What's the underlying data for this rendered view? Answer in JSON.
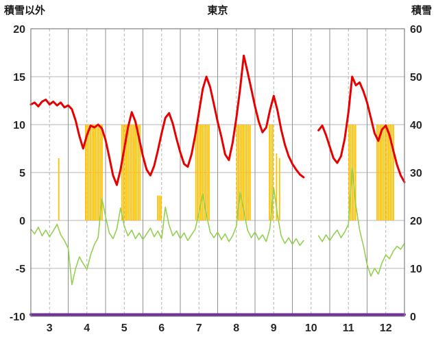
{
  "header": {
    "left_axis_title": "積雪以外",
    "title": "東京",
    "right_axis_title": "積雪"
  },
  "chart_data": {
    "type": "line",
    "title": "東京",
    "legend": "none",
    "grid": "solid month boundaries, dashed mid-month verticals, solid horizontals",
    "left_axis": {
      "label": "積雪以外",
      "min": -10,
      "max": 20,
      "tick_step": 5,
      "ticks": [
        -10,
        -5,
        0,
        5,
        10,
        15,
        20
      ]
    },
    "right_axis": {
      "label": "積雪",
      "min": 0,
      "max": 60,
      "tick_step": 10,
      "ticks": [
        0,
        10,
        20,
        30,
        40,
        50,
        60
      ]
    },
    "x_axis": {
      "labels": [
        "3",
        "4",
        "5",
        "6",
        "7",
        "8",
        "9",
        "10",
        "11",
        "12"
      ],
      "range": [
        3,
        13
      ],
      "unit": "month"
    },
    "series": [
      {
        "name": "orange-bars",
        "type": "bar",
        "axis": "left",
        "color": "#ffc000",
        "segments": [
          {
            "from": 3.73,
            "to": 3.8,
            "value": 6.5
          },
          {
            "from": 4.45,
            "to": 4.96,
            "value": 10
          },
          {
            "from": 5.42,
            "to": 5.94,
            "value": 10
          },
          {
            "from": 6.38,
            "to": 6.54,
            "value": 2.6
          },
          {
            "from": 7.4,
            "to": 7.81,
            "value": 10
          },
          {
            "from": 8.5,
            "to": 8.89,
            "value": 10
          },
          {
            "from": 9.37,
            "to": 9.53,
            "value": 10
          },
          {
            "from": 9.56,
            "to": 9.62,
            "value": 7.0
          },
          {
            "from": 9.64,
            "to": 9.7,
            "value": 6.5
          },
          {
            "from": 11.5,
            "to": 11.73,
            "value": 10
          },
          {
            "from": 12.25,
            "to": 12.74,
            "value": 10
          }
        ]
      },
      {
        "name": "snow-depth",
        "type": "line",
        "axis": "right",
        "color": "#7030a0",
        "width": 4,
        "x_start": 3.0,
        "x_step": 10.0,
        "y": [
          0,
          0
        ]
      },
      {
        "name": "green-line",
        "type": "line",
        "axis": "left",
        "color": "#92d050",
        "width": 1.6,
        "x_start": 3.0,
        "x_step": 0.1,
        "y": [
          -0.9,
          -1.4,
          -0.7,
          -1.6,
          -1.0,
          -1.7,
          -1.1,
          -0.4,
          -1.5,
          -2.1,
          -2.9,
          -6.7,
          -5.0,
          -3.8,
          -4.5,
          -5.1,
          -3.6,
          -2.5,
          -1.8,
          2.3,
          0.4,
          -1.3,
          -1.9,
          -0.9,
          1.3,
          -0.6,
          -1.6,
          -1.0,
          -1.9,
          -1.3,
          -2.0,
          -1.4,
          -0.8,
          -1.7,
          -1.1,
          -1.9,
          1.4,
          -0.5,
          -1.6,
          -1.1,
          -1.9,
          -1.3,
          -2.1,
          -1.5,
          -0.9,
          0.8,
          2.8,
          0.6,
          -1.2,
          -1.8,
          -1.2,
          -2.0,
          -1.4,
          -2.2,
          -1.6,
          -0.6,
          3.0,
          1.0,
          -1.0,
          -1.8,
          -1.2,
          -2.0,
          -1.5,
          -2.2,
          -0.8,
          3.4,
          0.6,
          -1.6,
          -2.4,
          -1.8,
          -2.5,
          -1.9,
          -2.6,
          -2.1,
          null,
          null,
          null,
          -1.6,
          -2.2,
          -1.5,
          -2.1,
          -1.5,
          -1.0,
          -1.8,
          -1.2,
          -0.4,
          5.5,
          1.5,
          -1.0,
          -2.6,
          -4.6,
          -5.8,
          -5.0,
          -5.6,
          -4.4,
          -3.6,
          -4.0,
          -3.2,
          -2.7,
          -3.0,
          -2.4
        ]
      },
      {
        "name": "red-line",
        "type": "line",
        "axis": "left",
        "color": "#e60000",
        "width": 3,
        "x_start": 3.0,
        "x_step": 0.1,
        "y": [
          12.1,
          12.3,
          11.9,
          12.4,
          12.6,
          12.1,
          12.4,
          12.0,
          12.3,
          11.8,
          12.0,
          11.6,
          10.4,
          8.8,
          7.5,
          8.9,
          9.9,
          9.7,
          10.0,
          9.6,
          8.4,
          6.6,
          4.7,
          3.7,
          5.3,
          7.5,
          9.7,
          11.3,
          10.3,
          8.5,
          6.7,
          5.3,
          4.7,
          5.7,
          7.3,
          9.1,
          10.7,
          11.2,
          10.1,
          8.5,
          7.1,
          5.9,
          5.6,
          6.9,
          8.9,
          11.3,
          13.7,
          15.0,
          13.9,
          12.1,
          10.3,
          8.7,
          6.9,
          6.3,
          8.1,
          10.7,
          13.7,
          17.2,
          15.5,
          13.7,
          11.9,
          10.3,
          9.2,
          9.7,
          11.5,
          13.0,
          11.5,
          9.5,
          7.9,
          6.7,
          5.9,
          5.3,
          4.8,
          4.5,
          null,
          null,
          null,
          9.4,
          9.9,
          8.9,
          7.7,
          6.5,
          6.0,
          6.7,
          8.5,
          11.3,
          15.0,
          14.1,
          14.4,
          13.5,
          12.3,
          10.7,
          9.1,
          8.3,
          9.5,
          9.9,
          8.9,
          7.3,
          5.8,
          4.7,
          4.0
        ]
      }
    ]
  }
}
